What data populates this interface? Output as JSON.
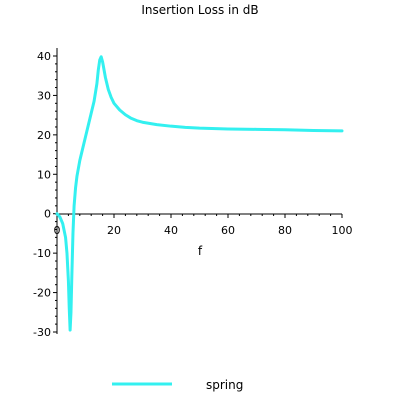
{
  "chart_data": {
    "type": "line",
    "title": "Insertion Loss in dB",
    "xlabel": "f",
    "ylabel": "",
    "xlim": [
      0,
      100
    ],
    "ylim": [
      -30,
      40
    ],
    "x_ticks": [
      0,
      20,
      40,
      60,
      80,
      100
    ],
    "y_ticks": [
      -30,
      -20,
      -10,
      0,
      10,
      20,
      30,
      40
    ],
    "grid": false,
    "legend_position": "bottom",
    "series": [
      {
        "name": "spring",
        "color": "#33f0f0",
        "x": [
          0,
          1,
          2,
          3,
          3.5,
          4,
          4.3,
          4.6,
          4.9,
          5.2,
          5.6,
          6,
          6.5,
          7,
          7.5,
          8,
          9,
          10,
          11,
          12,
          13,
          14,
          14.5,
          15,
          15.5,
          16,
          16.5,
          17,
          18,
          19,
          20,
          22,
          24,
          26,
          28,
          30,
          35,
          40,
          45,
          50,
          60,
          70,
          80,
          90,
          100
        ],
        "y": [
          0,
          -0.8,
          -2.5,
          -6,
          -10,
          -17,
          -24,
          -29.5,
          -25,
          -16,
          -5,
          2,
          6.5,
          9.5,
          11.5,
          13.5,
          16.5,
          19.5,
          22.5,
          25.5,
          28.5,
          33,
          36.5,
          39,
          39.8,
          38.5,
          36.5,
          34.5,
          31.5,
          29.5,
          28,
          26.3,
          25.1,
          24.2,
          23.6,
          23.2,
          22.6,
          22.2,
          21.9,
          21.7,
          21.5,
          21.4,
          21.3,
          21.1,
          21
        ]
      }
    ]
  }
}
